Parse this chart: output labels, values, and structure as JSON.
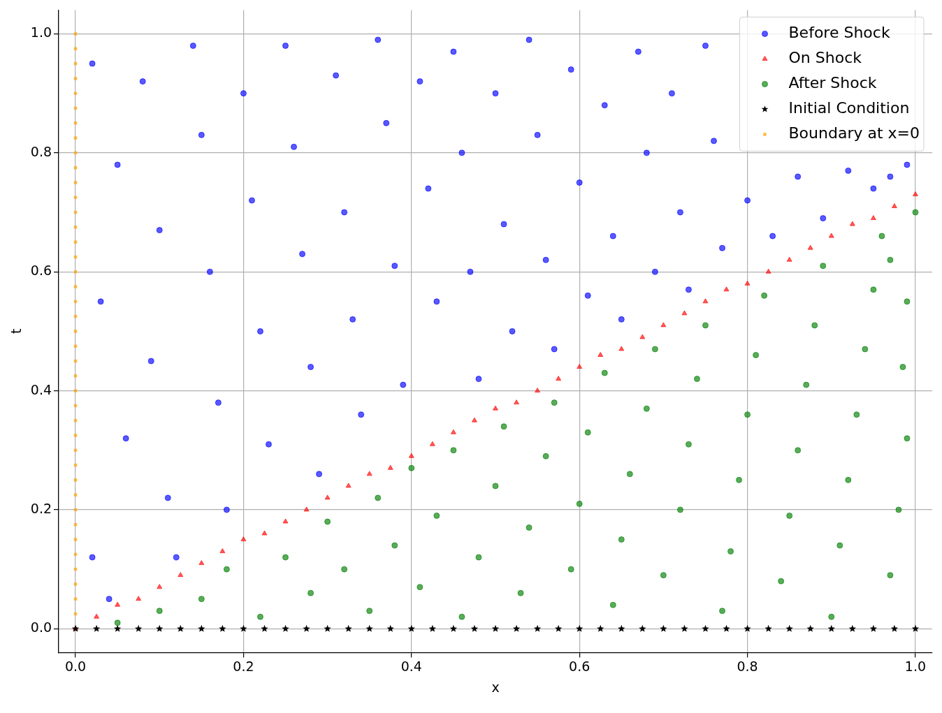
{
  "chart_data": {
    "type": "scatter",
    "xlabel": "x",
    "ylabel": "t",
    "xlim": [
      -0.02,
      1.02
    ],
    "ylim": [
      -0.04,
      1.04
    ],
    "xticks": [
      {
        "value": 0,
        "label": "0.0"
      },
      {
        "value": 0.2,
        "label": "0.2"
      },
      {
        "value": 0.4,
        "label": "0.4"
      },
      {
        "value": 0.6,
        "label": "0.6"
      },
      {
        "value": 0.8,
        "label": "0.8"
      },
      {
        "value": 1,
        "label": "1.0"
      }
    ],
    "yticks": [
      {
        "value": 0,
        "label": "0.0"
      },
      {
        "value": 0.2,
        "label": "0.2"
      },
      {
        "value": 0.4,
        "label": "0.4"
      },
      {
        "value": 0.6,
        "label": "0.6"
      },
      {
        "value": 0.8,
        "label": "0.8"
      },
      {
        "value": 1,
        "label": "1.0"
      }
    ],
    "grid": true,
    "legend": "top right",
    "series": [
      {
        "name": "Before Shock",
        "color": "#0000ff",
        "marker": "circle",
        "x": [
          0.02,
          0.05,
          0.03,
          0.06,
          0.02,
          0.04,
          0.08,
          0.1,
          0.09,
          0.11,
          0.12,
          0.14,
          0.15,
          0.16,
          0.17,
          0.18,
          0.2,
          0.21,
          0.22,
          0.23,
          0.25,
          0.26,
          0.27,
          0.28,
          0.29,
          0.31,
          0.32,
          0.33,
          0.34,
          0.36,
          0.37,
          0.38,
          0.39,
          0.41,
          0.42,
          0.43,
          0.45,
          0.46,
          0.47,
          0.48,
          0.5,
          0.51,
          0.52,
          0.54,
          0.55,
          0.56,
          0.57,
          0.59,
          0.6,
          0.61,
          0.63,
          0.64,
          0.65,
          0.67,
          0.68,
          0.69,
          0.71,
          0.72,
          0.73,
          0.75,
          0.76,
          0.77,
          0.8,
          0.83,
          0.86,
          0.89,
          0.92,
          0.95,
          0.97,
          0.99
        ],
        "values": [
          0.95,
          0.78,
          0.55,
          0.32,
          0.12,
          0.05,
          0.92,
          0.67,
          0.45,
          0.22,
          0.12,
          0.98,
          0.83,
          0.6,
          0.38,
          0.2,
          0.9,
          0.72,
          0.5,
          0.31,
          0.98,
          0.81,
          0.63,
          0.44,
          0.26,
          0.93,
          0.7,
          0.52,
          0.36,
          0.99,
          0.85,
          0.61,
          0.41,
          0.92,
          0.74,
          0.55,
          0.97,
          0.8,
          0.6,
          0.42,
          0.9,
          0.68,
          0.5,
          0.99,
          0.83,
          0.62,
          0.47,
          0.94,
          0.75,
          0.56,
          0.88,
          0.66,
          0.52,
          0.97,
          0.8,
          0.6,
          0.9,
          0.7,
          0.57,
          0.98,
          0.82,
          0.64,
          0.72,
          0.66,
          0.76,
          0.69,
          0.77,
          0.74,
          0.76,
          0.78
        ]
      },
      {
        "name": "On Shock",
        "color": "#ff0000",
        "marker": "triangle",
        "x": [
          0,
          0.025,
          0.05,
          0.075,
          0.1,
          0.125,
          0.15,
          0.175,
          0.2,
          0.225,
          0.25,
          0.275,
          0.3,
          0.325,
          0.35,
          0.375,
          0.4,
          0.425,
          0.45,
          0.475,
          0.5,
          0.525,
          0.55,
          0.575,
          0.6,
          0.625,
          0.65,
          0.675,
          0.7,
          0.725,
          0.75,
          0.775,
          0.8,
          0.825,
          0.85,
          0.875,
          0.9,
          0.925,
          0.95,
          0.975,
          1
        ],
        "values": [
          0,
          0.02,
          0.04,
          0.05,
          0.07,
          0.09,
          0.11,
          0.13,
          0.15,
          0.16,
          0.18,
          0.2,
          0.22,
          0.24,
          0.26,
          0.27,
          0.29,
          0.31,
          0.33,
          0.35,
          0.37,
          0.38,
          0.4,
          0.42,
          0.44,
          0.46,
          0.47,
          0.49,
          0.51,
          0.53,
          0.55,
          0.57,
          0.58,
          0.6,
          0.62,
          0.64,
          0.66,
          0.68,
          0.69,
          0.71,
          0.73
        ]
      },
      {
        "name": "After Shock",
        "color": "#008000",
        "marker": "circle",
        "x": [
          0.05,
          0.1,
          0.15,
          0.18,
          0.22,
          0.25,
          0.28,
          0.3,
          0.32,
          0.35,
          0.36,
          0.38,
          0.4,
          0.41,
          0.43,
          0.45,
          0.46,
          0.48,
          0.5,
          0.51,
          0.53,
          0.54,
          0.56,
          0.57,
          0.59,
          0.6,
          0.61,
          0.63,
          0.64,
          0.65,
          0.66,
          0.68,
          0.69,
          0.7,
          0.72,
          0.73,
          0.74,
          0.75,
          0.77,
          0.78,
          0.79,
          0.8,
          0.81,
          0.82,
          0.84,
          0.85,
          0.86,
          0.87,
          0.88,
          0.89,
          0.9,
          0.91,
          0.92,
          0.93,
          0.94,
          0.95,
          0.96,
          0.97,
          0.98,
          0.99,
          0.985,
          0.99,
          1,
          0.97
        ],
        "values": [
          0.01,
          0.03,
          0.05,
          0.1,
          0.02,
          0.12,
          0.06,
          0.18,
          0.1,
          0.03,
          0.22,
          0.14,
          0.27,
          0.07,
          0.19,
          0.3,
          0.02,
          0.12,
          0.24,
          0.34,
          0.06,
          0.17,
          0.29,
          0.38,
          0.1,
          0.21,
          0.33,
          0.43,
          0.04,
          0.15,
          0.26,
          0.37,
          0.47,
          0.09,
          0.2,
          0.31,
          0.42,
          0.51,
          0.03,
          0.13,
          0.25,
          0.36,
          0.46,
          0.56,
          0.08,
          0.19,
          0.3,
          0.41,
          0.51,
          0.61,
          0.02,
          0.14,
          0.25,
          0.36,
          0.47,
          0.57,
          0.66,
          0.09,
          0.2,
          0.32,
          0.44,
          0.55,
          0.7,
          0.62
        ]
      },
      {
        "name": "Initial Condition",
        "color": "#000000",
        "marker": "star",
        "x": [
          0,
          0.025,
          0.05,
          0.075,
          0.1,
          0.125,
          0.15,
          0.175,
          0.2,
          0.225,
          0.25,
          0.275,
          0.3,
          0.325,
          0.35,
          0.375,
          0.4,
          0.425,
          0.45,
          0.475,
          0.5,
          0.525,
          0.55,
          0.575,
          0.6,
          0.625,
          0.65,
          0.675,
          0.7,
          0.725,
          0.75,
          0.775,
          0.8,
          0.825,
          0.85,
          0.875,
          0.9,
          0.925,
          0.95,
          0.975,
          1
        ],
        "values": [
          0,
          0,
          0,
          0,
          0,
          0,
          0,
          0,
          0,
          0,
          0,
          0,
          0,
          0,
          0,
          0,
          0,
          0,
          0,
          0,
          0,
          0,
          0,
          0,
          0,
          0,
          0,
          0,
          0,
          0,
          0,
          0,
          0,
          0,
          0,
          0,
          0,
          0,
          0,
          0,
          0
        ]
      },
      {
        "name": "Boundary at x=0",
        "color": "#ffa500",
        "marker": "square",
        "x": [
          0,
          0,
          0,
          0,
          0,
          0,
          0,
          0,
          0,
          0,
          0,
          0,
          0,
          0,
          0,
          0,
          0,
          0,
          0,
          0,
          0,
          0,
          0,
          0,
          0,
          0,
          0,
          0,
          0,
          0,
          0,
          0,
          0,
          0,
          0,
          0,
          0,
          0,
          0,
          0
        ],
        "values": [
          0.025,
          0.05,
          0.075,
          0.1,
          0.125,
          0.15,
          0.175,
          0.2,
          0.225,
          0.25,
          0.275,
          0.3,
          0.325,
          0.35,
          0.375,
          0.4,
          0.425,
          0.45,
          0.475,
          0.5,
          0.525,
          0.55,
          0.575,
          0.6,
          0.625,
          0.65,
          0.675,
          0.7,
          0.725,
          0.75,
          0.775,
          0.8,
          0.825,
          0.85,
          0.875,
          0.9,
          0.925,
          0.95,
          0.975,
          1
        ]
      }
    ]
  }
}
